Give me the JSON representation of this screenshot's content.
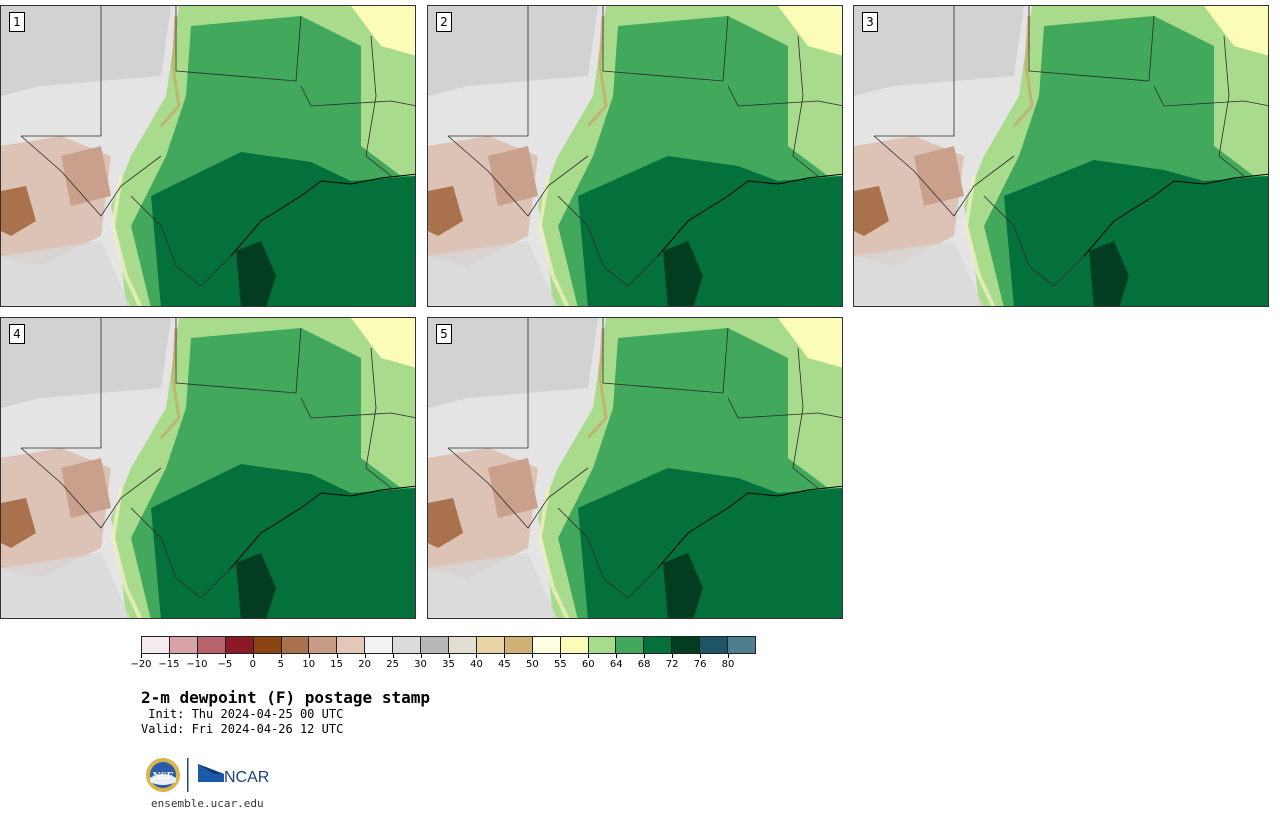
{
  "panels": [
    {
      "number": "1"
    },
    {
      "number": "2"
    },
    {
      "number": "3"
    },
    {
      "number": "4"
    },
    {
      "number": "5"
    }
  ],
  "colorbar": {
    "ticks": [
      "−20",
      "−15",
      "−10",
      "−5",
      "0",
      "5",
      "10",
      "15",
      "20",
      "25",
      "30",
      "35",
      "40",
      "45",
      "50",
      "55",
      "60",
      "64",
      "68",
      "72",
      "76",
      "80"
    ],
    "colors": [
      "#f4ecec",
      "#d8a3a8",
      "#b8636b",
      "#8b1a26",
      "#8b4513",
      "#a9714c",
      "#c79c84",
      "#e3c8b8",
      "#f2f2f2",
      "#dcdcdc",
      "#b8b8b8",
      "#e2dfd0",
      "#e6d3a6",
      "#d0b279",
      "#ffffe6",
      "#fbfcb8",
      "#a8dc8c",
      "#41a85c",
      "#04703b",
      "#023d22",
      "#1e5566",
      "#4f7f8c"
    ]
  },
  "title": "2-m dewpoint (F) postage stamp",
  "init": " Init: Thu 2024-04-25 00 UTC",
  "valid": "Valid: Fri 2024-04-26 12 UTC",
  "logos": {
    "nsf": "NSF",
    "ncar": "NCAR"
  },
  "site": "ensemble.ucar.edu"
}
